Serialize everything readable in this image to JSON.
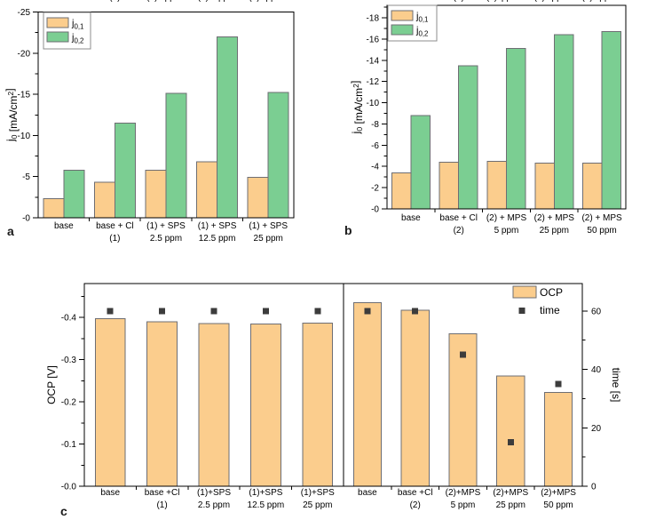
{
  "figure": {
    "panels": [
      {
        "letter": "a"
      },
      {
        "letter": "b"
      },
      {
        "letter": "c"
      }
    ]
  },
  "colors": {
    "bar_orange": "#FBCD8D",
    "bar_green": "#7BCE92",
    "bar_border": "#6E6E73",
    "axis": "#000000",
    "marker": "#3C3C3C",
    "legend_border": "#8C8C8C",
    "text": "#000000",
    "background": "#FFFFFF"
  },
  "chart_data": [
    {
      "id": "a",
      "type": "bar",
      "ylabel_parts": [
        {
          "t": "j"
        },
        {
          "t": "0",
          "sub": true
        },
        {
          "t": " [mA/cm"
        },
        {
          "t": "2",
          "sup": true
        },
        {
          "t": "]"
        }
      ],
      "y_max": 25.0,
      "y_minor_step": 2.5,
      "y_ticks": [
        {
          "v": 0,
          "label": "-0"
        },
        {
          "v": 5,
          "label": "-5"
        },
        {
          "v": 10,
          "label": "-10"
        },
        {
          "v": 15,
          "label": "-15"
        },
        {
          "v": 20,
          "label": "-20"
        },
        {
          "v": 25,
          "label": "-25"
        }
      ],
      "categories": [
        [
          "base"
        ],
        [
          "base + Cl",
          "(1)"
        ],
        [
          "(1) + SPS",
          "2.5 ppm"
        ],
        [
          "(1) + SPS",
          "12.5 ppm"
        ],
        [
          "(1) + SPS",
          "25 ppm"
        ]
      ],
      "series": [
        {
          "name_main": "j",
          "name_sub": "0,1",
          "color_key": "bar_orange",
          "values": [
            -2.3,
            -4.3,
            -5.8,
            -6.8,
            -4.9
          ]
        },
        {
          "name_main": "j",
          "name_sub": "0,2",
          "color_key": "bar_green",
          "values": [
            -5.8,
            -11.5,
            -15.1,
            -22.0,
            -15.2
          ]
        }
      ],
      "legend_position": "top-left"
    },
    {
      "id": "b",
      "type": "bar",
      "ylabel_parts": [
        {
          "t": "j"
        },
        {
          "t": "0",
          "sub": true
        },
        {
          "t": " [mA/cm"
        },
        {
          "t": "2",
          "sup": true
        },
        {
          "t": "]"
        }
      ],
      "y_max": 19.18,
      "y_minor_step": 1,
      "y_ticks": [
        {
          "v": 0,
          "label": "-0"
        },
        {
          "v": 2,
          "label": "-2"
        },
        {
          "v": 4,
          "label": "-4"
        },
        {
          "v": 6,
          "label": "-6"
        },
        {
          "v": 8,
          "label": "-8"
        },
        {
          "v": 10,
          "label": "-10"
        },
        {
          "v": 12,
          "label": "-12"
        },
        {
          "v": 14,
          "label": "-14"
        },
        {
          "v": 16,
          "label": "-16"
        },
        {
          "v": 18,
          "label": "-18"
        }
      ],
      "categories": [
        [
          "base"
        ],
        [
          "base + Cl",
          "(2)"
        ],
        [
          "(2) + MPS",
          "5 ppm"
        ],
        [
          "(2) + MPS",
          "25 ppm"
        ],
        [
          "(2) + MPS",
          "50 ppm"
        ]
      ],
      "series": [
        {
          "name_main": "j",
          "name_sub": "0,1",
          "color_key": "bar_orange",
          "values": [
            -3.4,
            -4.4,
            -4.5,
            -4.3,
            -4.3
          ]
        },
        {
          "name_main": "j",
          "name_sub": "0,2",
          "color_key": "bar_green",
          "values": [
            -8.8,
            -13.5,
            -15.1,
            -16.4,
            -16.7
          ]
        }
      ],
      "legend_position": "top-left"
    },
    {
      "id": "c",
      "type": "bar+scatter",
      "left_axis": {
        "label": "OCP [V]",
        "max": 0.48,
        "minor_step": 0.05,
        "ticks": [
          {
            "v": 0.0,
            "label": "-0.0"
          },
          {
            "v": 0.1,
            "label": "-0.1"
          },
          {
            "v": 0.2,
            "label": "-0.2"
          },
          {
            "v": 0.3,
            "label": "-0.3"
          },
          {
            "v": 0.4,
            "label": "-0.4"
          }
        ]
      },
      "right_axis": {
        "label": "time [s]",
        "max": 69.4,
        "minor_step": 10,
        "ticks": [
          {
            "v": 0,
            "label": "0"
          },
          {
            "v": 20,
            "label": "20"
          },
          {
            "v": 40,
            "label": "40"
          },
          {
            "v": 60,
            "label": "60"
          }
        ]
      },
      "panels": [
        {
          "categories": [
            [
              "base"
            ],
            [
              "base +Cl",
              "(1)"
            ],
            [
              "(1)+SPS",
              "2.5 ppm"
            ],
            [
              "(1)+SPS",
              "12.5 ppm"
            ],
            [
              "(1)+SPS",
              "25 ppm"
            ]
          ],
          "ocp": [
            -0.397,
            -0.389,
            -0.385,
            -0.384,
            -0.386
          ],
          "time": [
            60,
            60,
            60,
            60,
            60
          ]
        },
        {
          "categories": [
            [
              "base"
            ],
            [
              "base +Cl",
              "(2)"
            ],
            [
              "(2)+MPS",
              "5 ppm"
            ],
            [
              "(2)+MPS",
              "25 ppm"
            ],
            [
              "(2)+MPS",
              "50 ppm"
            ]
          ],
          "ocp": [
            -0.435,
            -0.417,
            -0.361,
            -0.261,
            -0.222
          ],
          "time": [
            60,
            60,
            45,
            15,
            35
          ]
        }
      ],
      "legend": {
        "bar_label": "OCP",
        "marker_label": "time"
      }
    }
  ]
}
